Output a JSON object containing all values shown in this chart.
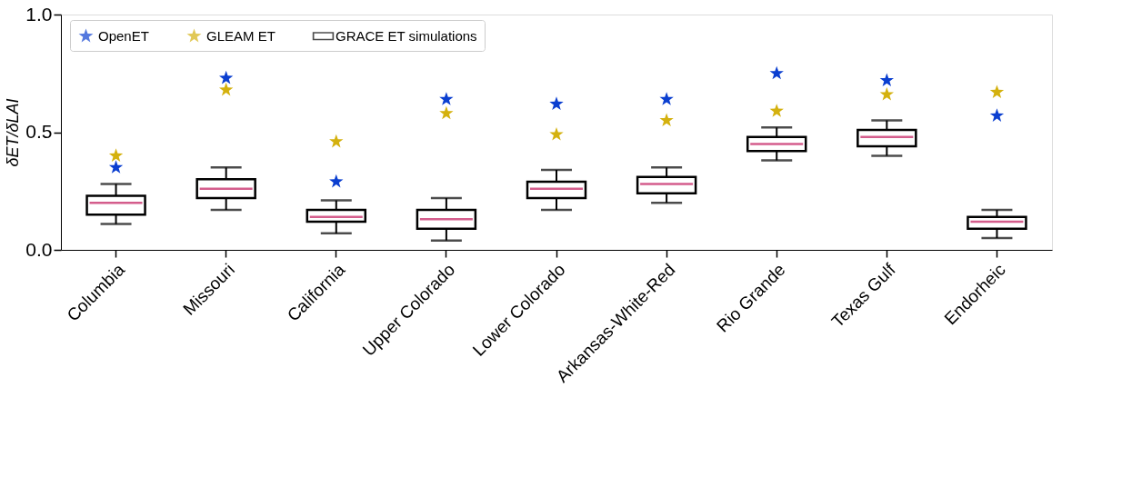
{
  "chart_data": {
    "type": "box",
    "ylabel": "δET/δLAI",
    "categories": [
      "Columbia",
      "Missouri",
      "California",
      "Upper Colorado",
      "Lower Colorado",
      "Arkansas-White-Red",
      "Rio Grande",
      "Texas Gulf",
      "Endorheic"
    ],
    "ylim": [
      0,
      1.0
    ],
    "yticks": [
      {
        "value": 0,
        "label": "0.0"
      },
      {
        "value": 0.5,
        "label": "0.5"
      },
      {
        "value": 1.0,
        "label": "1.0"
      }
    ],
    "grid": false,
    "legend": "top left",
    "marker": "star",
    "series": [
      {
        "name": "OpenET",
        "type": "scatter",
        "color": "#0b3fd0",
        "values": [
          0.35,
          0.73,
          0.29,
          0.64,
          0.62,
          0.64,
          0.75,
          0.72,
          0.57
        ]
      },
      {
        "name": "GLEAM ET",
        "type": "scatter",
        "color": "#d4b10e",
        "values": [
          0.4,
          0.68,
          0.46,
          0.58,
          0.49,
          0.55,
          0.59,
          0.66,
          0.67
        ]
      },
      {
        "name": "GRACE ET simulations",
        "color": "#000000",
        "boxes": [
          {
            "low": 0.11,
            "q1": 0.15,
            "median": 0.2,
            "q3": 0.23,
            "high": 0.28
          },
          {
            "low": 0.17,
            "q1": 0.22,
            "median": 0.26,
            "q3": 0.3,
            "high": 0.35
          },
          {
            "low": 0.07,
            "q1": 0.12,
            "median": 0.14,
            "q3": 0.17,
            "high": 0.21
          },
          {
            "low": 0.04,
            "q1": 0.09,
            "median": 0.13,
            "q3": 0.17,
            "high": 0.22
          },
          {
            "low": 0.17,
            "q1": 0.22,
            "median": 0.26,
            "q3": 0.29,
            "high": 0.34
          },
          {
            "low": 0.2,
            "q1": 0.24,
            "median": 0.28,
            "q3": 0.31,
            "high": 0.35
          },
          {
            "low": 0.38,
            "q1": 0.42,
            "median": 0.45,
            "q3": 0.48,
            "high": 0.52
          },
          {
            "low": 0.4,
            "q1": 0.44,
            "median": 0.48,
            "q3": 0.51,
            "high": 0.55
          },
          {
            "low": 0.05,
            "q1": 0.09,
            "median": 0.12,
            "q3": 0.14,
            "high": 0.17
          }
        ]
      }
    ]
  }
}
